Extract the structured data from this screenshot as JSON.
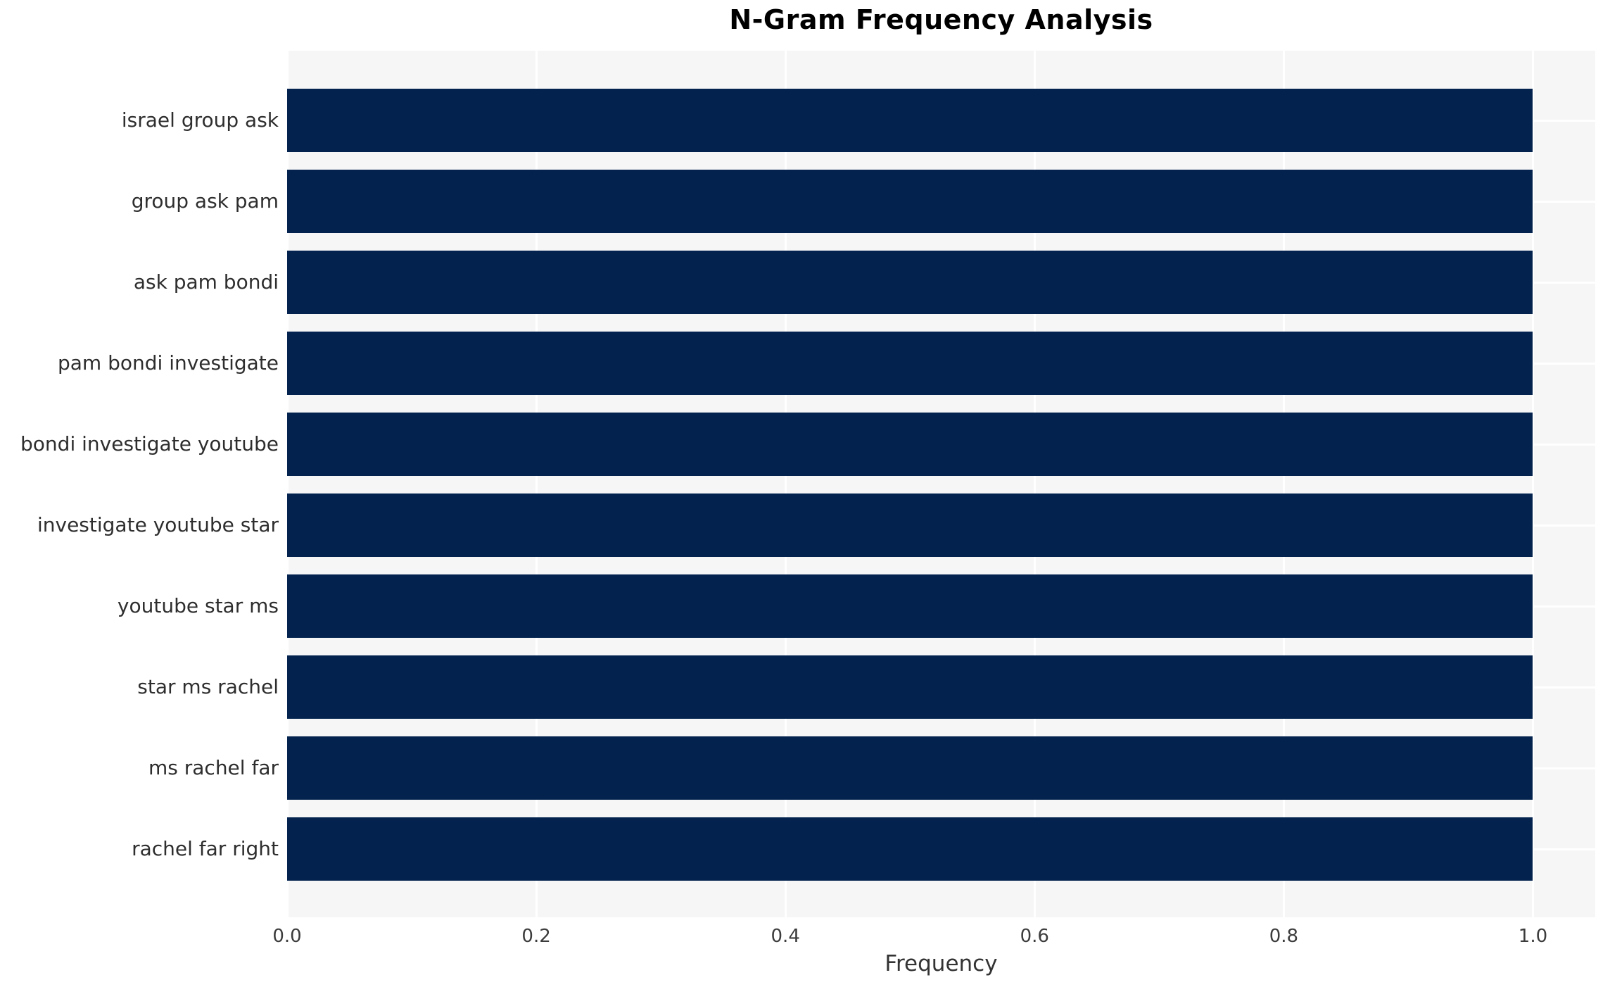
{
  "chart_data": {
    "type": "bar",
    "orientation": "horizontal",
    "title": "N-Gram Frequency Analysis",
    "xlabel": "Frequency",
    "ylabel": "",
    "categories": [
      "israel group ask",
      "group ask pam",
      "ask pam bondi",
      "pam bondi investigate",
      "bondi investigate youtube",
      "investigate youtube star",
      "youtube star ms",
      "star ms rachel",
      "ms rachel far",
      "rachel far right"
    ],
    "values": [
      1.0,
      1.0,
      1.0,
      1.0,
      1.0,
      1.0,
      1.0,
      1.0,
      1.0,
      1.0
    ],
    "xlim": [
      0,
      1.05
    ],
    "xticks": [
      0.0,
      0.2,
      0.4,
      0.6,
      0.8,
      1.0
    ],
    "xtick_labels": [
      "0.0",
      "0.2",
      "0.4",
      "0.6",
      "0.8",
      "1.0"
    ],
    "grid": true,
    "legend": false,
    "colors": {
      "bar": "#03234e",
      "plot_background": "#f6f6f7",
      "gridline": "#ffffff",
      "title_text": "#000000",
      "tick_text": "#3c3c3c",
      "label_text": "#333333"
    }
  }
}
